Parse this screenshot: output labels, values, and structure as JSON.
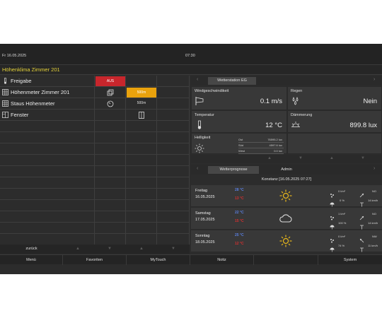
{
  "topbar": {
    "date": "Fr  16.05.2025",
    "time": "07:30"
  },
  "title": "Höhenklima Zimmer 201",
  "rows": [
    {
      "label": "Freigabe",
      "icon": "thermometer-icon",
      "status": "AUS"
    },
    {
      "label": "Höhenmeter Zimmer 201",
      "icon": "grid-icon",
      "value": "500m"
    },
    {
      "label": "Staus Höhenmeter",
      "icon": "grid-icon",
      "value": "500m"
    },
    {
      "label": "Fenster",
      "icon": "window-icon"
    }
  ],
  "left_nav": {
    "back": "zurück"
  },
  "weather_tabs": {
    "active": "Wetterstation EG"
  },
  "tiles": {
    "wind": {
      "label": "Windgeschwindikeit",
      "value": "0.1 m/s"
    },
    "rain": {
      "label": "Regen",
      "value": "Nein"
    },
    "temp": {
      "label": "Temperatur",
      "value": "12 °C"
    },
    "dusk": {
      "label": "Dämmerung",
      "value": "899.8 lux"
    },
    "bright": {
      "label": "Helligkeit",
      "rows": [
        {
          "k": "Ost",
          "v": "76595.2 lux"
        },
        {
          "k": "Süd",
          "v": "4597.6 lux"
        },
        {
          "k": "West",
          "v": "0.0 lux"
        }
      ]
    }
  },
  "forecast_tabs": {
    "active": "Wetterprognose",
    "other": "Admin"
  },
  "forecast_header": "Konstanz  [16.05.2025 07:27]",
  "forecast": [
    {
      "day": "Freitag",
      "date": "16.05.2025",
      "tmax": "28 °C",
      "tmin": "13 °C",
      "icon": "sun-icon",
      "rain": "0 l/m²",
      "wind_dir": "NO",
      "prob": "0 %",
      "wind": "14 km/h"
    },
    {
      "day": "Samstag",
      "date": "17.05.2025",
      "tmax": "22 °C",
      "tmin": "15 °C",
      "icon": "cloud-icon",
      "rain": "1 l/m²",
      "wind_dir": "NO",
      "prob": "100 %",
      "wind": "14 km/h"
    },
    {
      "day": "Sonntag",
      "date": "18.05.2025",
      "tmax": "25 °C",
      "tmin": "12 °C",
      "icon": "sun-icon",
      "rain": "0 l/m²",
      "wind_dir": "NW",
      "prob": "74 %",
      "wind": "11 km/h"
    }
  ],
  "bottom_nav": [
    "Menü",
    "Favoriten",
    "MyTouch",
    "Notiz",
    "",
    "System"
  ],
  "colors": {
    "accent_yellow": "#e6d33a",
    "status_red": "#c8262c",
    "value_orange": "#e9a20d",
    "tmax_blue": "#5a7fe0",
    "tmin_red": "#d23030"
  }
}
